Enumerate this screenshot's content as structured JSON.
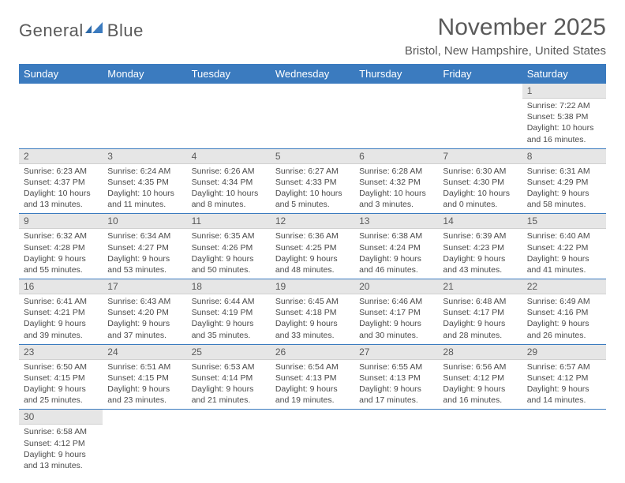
{
  "logo": {
    "text1": "General",
    "text2": "Blue"
  },
  "title": "November 2025",
  "location": "Bristol, New Hampshire, United States",
  "colors": {
    "header_bg": "#3b7bbf",
    "header_text": "#ffffff",
    "daynum_bg": "#e6e6e6",
    "text": "#5a5a5a",
    "cell_border": "#3b7bbf"
  },
  "days_of_week": [
    "Sunday",
    "Monday",
    "Tuesday",
    "Wednesday",
    "Thursday",
    "Friday",
    "Saturday"
  ],
  "weeks": [
    [
      null,
      null,
      null,
      null,
      null,
      null,
      {
        "n": "1",
        "sunrise": "Sunrise: 7:22 AM",
        "sunset": "Sunset: 5:38 PM",
        "day1": "Daylight: 10 hours",
        "day2": "and 16 minutes."
      }
    ],
    [
      {
        "n": "2",
        "sunrise": "Sunrise: 6:23 AM",
        "sunset": "Sunset: 4:37 PM",
        "day1": "Daylight: 10 hours",
        "day2": "and 13 minutes."
      },
      {
        "n": "3",
        "sunrise": "Sunrise: 6:24 AM",
        "sunset": "Sunset: 4:35 PM",
        "day1": "Daylight: 10 hours",
        "day2": "and 11 minutes."
      },
      {
        "n": "4",
        "sunrise": "Sunrise: 6:26 AM",
        "sunset": "Sunset: 4:34 PM",
        "day1": "Daylight: 10 hours",
        "day2": "and 8 minutes."
      },
      {
        "n": "5",
        "sunrise": "Sunrise: 6:27 AM",
        "sunset": "Sunset: 4:33 PM",
        "day1": "Daylight: 10 hours",
        "day2": "and 5 minutes."
      },
      {
        "n": "6",
        "sunrise": "Sunrise: 6:28 AM",
        "sunset": "Sunset: 4:32 PM",
        "day1": "Daylight: 10 hours",
        "day2": "and 3 minutes."
      },
      {
        "n": "7",
        "sunrise": "Sunrise: 6:30 AM",
        "sunset": "Sunset: 4:30 PM",
        "day1": "Daylight: 10 hours",
        "day2": "and 0 minutes."
      },
      {
        "n": "8",
        "sunrise": "Sunrise: 6:31 AM",
        "sunset": "Sunset: 4:29 PM",
        "day1": "Daylight: 9 hours",
        "day2": "and 58 minutes."
      }
    ],
    [
      {
        "n": "9",
        "sunrise": "Sunrise: 6:32 AM",
        "sunset": "Sunset: 4:28 PM",
        "day1": "Daylight: 9 hours",
        "day2": "and 55 minutes."
      },
      {
        "n": "10",
        "sunrise": "Sunrise: 6:34 AM",
        "sunset": "Sunset: 4:27 PM",
        "day1": "Daylight: 9 hours",
        "day2": "and 53 minutes."
      },
      {
        "n": "11",
        "sunrise": "Sunrise: 6:35 AM",
        "sunset": "Sunset: 4:26 PM",
        "day1": "Daylight: 9 hours",
        "day2": "and 50 minutes."
      },
      {
        "n": "12",
        "sunrise": "Sunrise: 6:36 AM",
        "sunset": "Sunset: 4:25 PM",
        "day1": "Daylight: 9 hours",
        "day2": "and 48 minutes."
      },
      {
        "n": "13",
        "sunrise": "Sunrise: 6:38 AM",
        "sunset": "Sunset: 4:24 PM",
        "day1": "Daylight: 9 hours",
        "day2": "and 46 minutes."
      },
      {
        "n": "14",
        "sunrise": "Sunrise: 6:39 AM",
        "sunset": "Sunset: 4:23 PM",
        "day1": "Daylight: 9 hours",
        "day2": "and 43 minutes."
      },
      {
        "n": "15",
        "sunrise": "Sunrise: 6:40 AM",
        "sunset": "Sunset: 4:22 PM",
        "day1": "Daylight: 9 hours",
        "day2": "and 41 minutes."
      }
    ],
    [
      {
        "n": "16",
        "sunrise": "Sunrise: 6:41 AM",
        "sunset": "Sunset: 4:21 PM",
        "day1": "Daylight: 9 hours",
        "day2": "and 39 minutes."
      },
      {
        "n": "17",
        "sunrise": "Sunrise: 6:43 AM",
        "sunset": "Sunset: 4:20 PM",
        "day1": "Daylight: 9 hours",
        "day2": "and 37 minutes."
      },
      {
        "n": "18",
        "sunrise": "Sunrise: 6:44 AM",
        "sunset": "Sunset: 4:19 PM",
        "day1": "Daylight: 9 hours",
        "day2": "and 35 minutes."
      },
      {
        "n": "19",
        "sunrise": "Sunrise: 6:45 AM",
        "sunset": "Sunset: 4:18 PM",
        "day1": "Daylight: 9 hours",
        "day2": "and 33 minutes."
      },
      {
        "n": "20",
        "sunrise": "Sunrise: 6:46 AM",
        "sunset": "Sunset: 4:17 PM",
        "day1": "Daylight: 9 hours",
        "day2": "and 30 minutes."
      },
      {
        "n": "21",
        "sunrise": "Sunrise: 6:48 AM",
        "sunset": "Sunset: 4:17 PM",
        "day1": "Daylight: 9 hours",
        "day2": "and 28 minutes."
      },
      {
        "n": "22",
        "sunrise": "Sunrise: 6:49 AM",
        "sunset": "Sunset: 4:16 PM",
        "day1": "Daylight: 9 hours",
        "day2": "and 26 minutes."
      }
    ],
    [
      {
        "n": "23",
        "sunrise": "Sunrise: 6:50 AM",
        "sunset": "Sunset: 4:15 PM",
        "day1": "Daylight: 9 hours",
        "day2": "and 25 minutes."
      },
      {
        "n": "24",
        "sunrise": "Sunrise: 6:51 AM",
        "sunset": "Sunset: 4:15 PM",
        "day1": "Daylight: 9 hours",
        "day2": "and 23 minutes."
      },
      {
        "n": "25",
        "sunrise": "Sunrise: 6:53 AM",
        "sunset": "Sunset: 4:14 PM",
        "day1": "Daylight: 9 hours",
        "day2": "and 21 minutes."
      },
      {
        "n": "26",
        "sunrise": "Sunrise: 6:54 AM",
        "sunset": "Sunset: 4:13 PM",
        "day1": "Daylight: 9 hours",
        "day2": "and 19 minutes."
      },
      {
        "n": "27",
        "sunrise": "Sunrise: 6:55 AM",
        "sunset": "Sunset: 4:13 PM",
        "day1": "Daylight: 9 hours",
        "day2": "and 17 minutes."
      },
      {
        "n": "28",
        "sunrise": "Sunrise: 6:56 AM",
        "sunset": "Sunset: 4:12 PM",
        "day1": "Daylight: 9 hours",
        "day2": "and 16 minutes."
      },
      {
        "n": "29",
        "sunrise": "Sunrise: 6:57 AM",
        "sunset": "Sunset: 4:12 PM",
        "day1": "Daylight: 9 hours",
        "day2": "and 14 minutes."
      }
    ],
    [
      {
        "n": "30",
        "sunrise": "Sunrise: 6:58 AM",
        "sunset": "Sunset: 4:12 PM",
        "day1": "Daylight: 9 hours",
        "day2": "and 13 minutes."
      },
      null,
      null,
      null,
      null,
      null,
      null
    ]
  ]
}
